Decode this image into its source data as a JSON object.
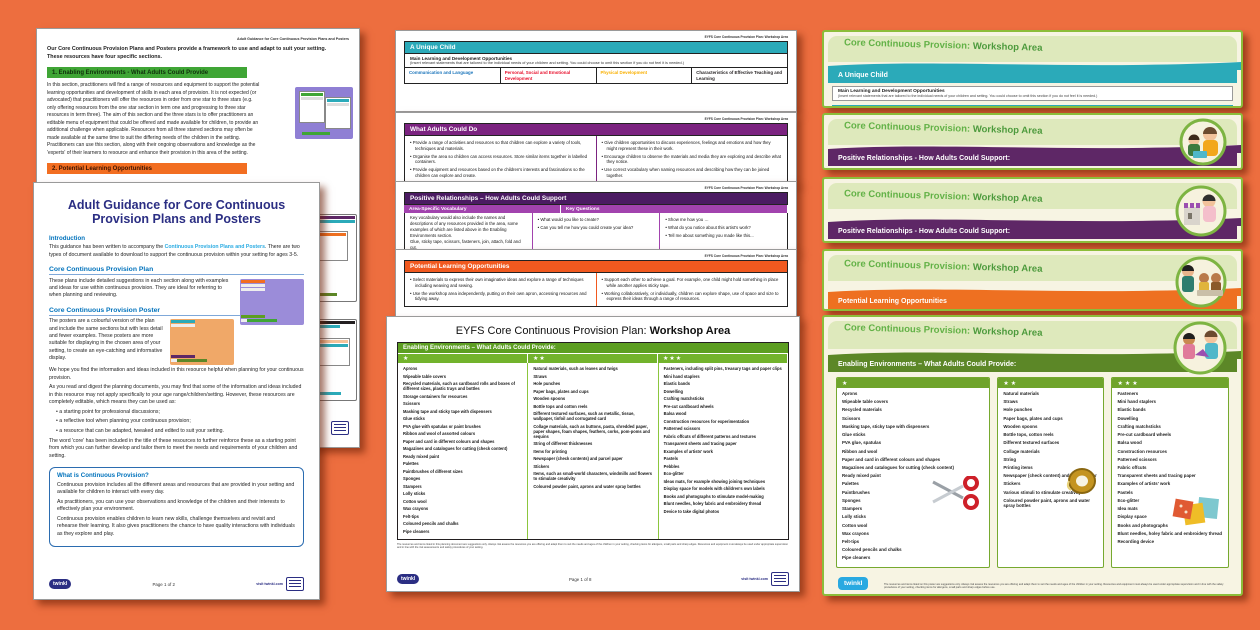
{
  "colors": {
    "bg": "#ED6E3F",
    "teal": "#2BAAB9",
    "purple_bright": "#7B2380",
    "purple_dark": "#4B1B62",
    "purple_mid": "#A243AE",
    "orange_plan": "#F1591F",
    "green_plan": "#5C9E21",
    "green_guidance": "#3FA535",
    "orange_guidance": "#F26E21",
    "poster_purple": "#5E2766",
    "poster_orange": "#EE7021",
    "poster_green": "#5C8727",
    "poster_teal": "#2BAAB9",
    "navy": "#2B2E83",
    "blue": "#0072BC",
    "link_blue": "#29ABE2",
    "twinkl_blue": "#29A9E1"
  },
  "brand": "twinkl",
  "guidance_back": {
    "header": "Adult Guidance for Core Continuous Provision Plans and Posters",
    "intro": "Our Core Continuous Provision Plans and Posters provide a framework to use and adapt to suit your setting. These resources have four specific sections.",
    "section1_title": "1. Enabling Environments - What Adults Could Provide",
    "section1_body": "In this section, practitioners will find a range of resources and equipment to support the potential learning opportunities and development of skills in each area of provision. It is not expected (or advocated) that practitioners will offer the resources in order from one star to three stars (e.g. only offering resources from the one star section in term one and progressing to three star resources in term three). The aim of this section and the three stars is to offer practitioners an editable menu of equipment that could be offered and made available for children, to provide an additional challenge when applicable. Resources from all three starred sections may often be made available at the same time to suit the differing needs of the children in the setting. Practitioners can use this section, along with their ongoing observations and knowledge as the 'experts' of their learners to resource and enhance their provision in this area of the setting.",
    "section2_title": "2. Potential Learning Opportunities"
  },
  "guidance_front": {
    "title": "Adult Guidance for Core Continuous Provision Plans and Posters",
    "intro_heading": "Introduction",
    "intro_pre": "This guidance has been written to accompany the ",
    "intro_link": "Continuous Provision Plans and Posters",
    "intro_post": ". There are two types of document available to download to support the continuous provision within your setting for ages 3-5.",
    "plan_heading": "Core Continuous Provision Plan",
    "plan_body": "These plans include detailed suggestions in each section along with examples and ideas for use within continuous provision. They are ideal for referring to when planning and reviewing.",
    "poster_heading": "Core Continuous Provision Poster",
    "poster_body": "The posters are a colourful version of the plan and include the same sections but with less detail and fewer examples. These posters are more suitable for displaying in the chosen area of your setting, to create an eye-catching and informative display.",
    "hope_para": "We hope you find the information and ideas included in this resource helpful when planning for your continuous provision.",
    "editable_para": "As you read and digest the planning documents, you may find that some of the information and ideas included in this resource may not apply specifically to your age range/children/setting. However, these resources are completely editable, which means they can be used as:",
    "bullets": [
      "a starting point for professional discussions;",
      "a reflective tool when planning your continuous provision;",
      "a resource that can be adapted, tweaked and edited to suit your setting."
    ],
    "core_para": "The word 'core' has been included in the title of these resources to further reinforce these as a starting point from which you can further develop and tailor them to meet the needs and requirements of your children and setting.",
    "box_heading": "What is Continuous Provision?",
    "box_paras": [
      "Continuous provision includes all the different areas and resources that are provided in your setting and available for children to interact with every day.",
      "As practitioners, you can use your observations and knowledge of the children and their interests to effectively plan your environment.",
      "Continuous provision enables children to learn new skills, challenge themselves and revisit and rehearse their learning. It also gives practitioners the chance to have quality interactions with individuals as they explore and play."
    ],
    "footer_page": "Page 1 of 2",
    "footer_site": "visit twinkl.com"
  },
  "strips": {
    "header": "EYFS Core Continuous Provision Plan: Workshop Area",
    "unique_child": {
      "banner": "A Unique Child",
      "sub": "Main Learning and Development Opportunities",
      "note": "(Insert relevant statements that are tailored to the individual needs of your children and setting. You could choose to omit this section if you do not feel it is needed.)",
      "columns": [
        {
          "label": "Communication and Language",
          "color": "#1B75BB"
        },
        {
          "label": "Personal, Social and Emotional Development",
          "color": "#E8112D"
        },
        {
          "label": "Physical Development",
          "color": "#F9B000"
        },
        {
          "label": "Characteristics of Effective Teaching and Learning",
          "color": "#231F20"
        }
      ]
    },
    "adults_do": {
      "banner": "What Adults Could Do",
      "left": [
        "Provide a range of activities and resources so that children can explore a variety of tools, techniques and materials.",
        "Organise the area so children can access resources. Store similar items together in labelled containers.",
        "Provide equipment and resources based on the children's interests and fascinations so the children can explore and create."
      ],
      "right": [
        "Give children opportunities to discuss experiences, feelings and emotions and how they might represent these in their work.",
        "Encourage children to observe the materials and media they are exploring and describe what they notice.",
        "Use correct vocabulary when naming resources and describing how they can be joined together."
      ]
    },
    "relationships": {
      "banner": "Positive Relationships – How Adults Could Support",
      "vocab_title": "Area-Specific Vocabulary",
      "kq_title": "Key Questions",
      "vocab": "Key vocabulary would also include the names and descriptions of any resources provided in the area, some examples of which are listed above in the Enabling Environments section.",
      "vocab2": "Glue, sticky tape, scissors, fasteners, join, attach, fold and cut.",
      "kq1": [
        "What would you like to create?",
        "Can you tell me how you could create your idea?"
      ],
      "kq2": [
        "Show me how you …",
        "What do you notice about this artist's work?",
        "Tell me about something you made like this..."
      ]
    },
    "opportunities": {
      "banner": "Potential Learning Opportunities",
      "left": [
        "Select materials to express their own imaginative ideas and explore a range of techniques including weaving and sewing.",
        "Use the workshop area independently, putting on their own apron, accessing resources and tidying away."
      ],
      "right": [
        "Support each other to achieve a goal. For example, one child might hold something in place while another applies sticky tape.",
        "Working collaboratively, or individually, children can explore shape, use of space and size to express their ideas through a range of resources."
      ]
    }
  },
  "plan": {
    "title": "EYFS Core Continuous Provision Plan: ",
    "title_bold": "Workshop Area",
    "banner": "Enabling Environments – What Adults Could Provide:",
    "stars": [
      "★",
      "★★",
      "★★★"
    ],
    "col1": [
      "Aprons",
      "Wipeable table covers",
      "Recycled materials, such as cardboard rolls and boxes of different sizes, plastic trays and bottles",
      "Storage containers for resources",
      "Scissors",
      "Masking tape and sticky tape with dispensers",
      "Glue sticks",
      "PVA glue with spatulas or paint brushes",
      "Ribbon and wool of assorted colours",
      "Paper and card in different colours and shapes",
      "Magazines and catalogues for cutting (check content)",
      "Ready mixed paint",
      "Palettes",
      "Paintbrushes of different sizes",
      "Sponges",
      "Stampers",
      "Lolly sticks",
      "Cotton wool",
      "Wax crayons",
      "Felt-tips",
      "Coloured pencils and chalks",
      "Pipe cleaners"
    ],
    "col2": [
      "Natural materials, such as leaves and twigs",
      "Straws",
      "Hole punches",
      "Paper bags, plates and cups",
      "Wooden spoons",
      "Bottle tops and cotton reels",
      "Different textured surfaces, such as metallic, tissue, wallpaper, tinfoil and corrugated card",
      "Collage materials, such as buttons, pasta, shredded paper, paper shapes, foam shapes, feathers, corks, pom-poms and sequins",
      "String of different thicknesses",
      "Items for printing",
      "Newspaper (check contents) and parcel paper",
      "Stickers",
      "Items, such as small-world characters, windmills and flowers to stimulate creativity",
      "Coloured powder paint, aprons and water spray bottles"
    ],
    "col3": [
      "Fasteners, including split pins, treasury tags and paper clips",
      "Mini hand staplers",
      "Elastic bands",
      "Dowelling",
      "Crafting matchsticks",
      "Pre-cut cardboard wheels",
      "Balsa wood",
      "Construction resources for experimentation",
      "Patterned scissors",
      "Fabric offcuts of different patterns and textures",
      "Transparent sheets and tracing paper",
      "Examples of artists' work",
      "Pastels",
      "Pebbles",
      "Eco-glitter",
      "Ideas mats, for example showing joining techniques",
      "Display space for models with children's own labels",
      "Books and photographs to stimulate model-making",
      "Blunt needles, holey fabric and embroidery thread",
      "Device to take digital photos"
    ],
    "fine_print": "The resources and items listed in this planning document are suggestions only. Always risk assess the resources you are offering and adapt them to suit the needs and ages of the children in your setting, checking items for allergens, small parts and sharp edges. Resources and equipment must always be used under appropriate supervision and in line with the risk assessments and safety procedures of your setting.",
    "footer_page": "Page 1 of 8",
    "footer_site": "visit twinkl.com"
  },
  "posters": {
    "heading": "Core Continuous Provision: ",
    "heading_bold": "Workshop Area",
    "p1": {
      "banner": "A Unique Child",
      "color": "#2BAAB9",
      "sub": "Main Learning and Development Opportunities",
      "note": "(Insert relevant statements that are tailored to the individual needs of your children and setting. You could choose to omit this section if you do not feel it is needed.)"
    },
    "p2": {
      "banner": "Positive Relationships - How Adults Could Support:",
      "color": "#5E2766"
    },
    "p3": {
      "banner": "Positive Relationships - How Adults Could Support:",
      "color": "#5E2766"
    },
    "p4": {
      "banner": "Potential Learning Opportunities",
      "color": "#EE7021"
    },
    "p5": {
      "banner": "Enabling Environments – What Adults Could Provide:",
      "color": "#5C8727",
      "stars": [
        "★",
        "★★",
        "★★★"
      ],
      "col1": [
        "Aprons",
        "Wipeable table covers",
        "Recycled materials",
        "Scissors",
        "Masking tape, sticky tape with dispensers",
        "Glue sticks",
        "PVA glue, spatulas",
        "Ribbon and wool",
        "Paper and card in different colours and shapes",
        "Magazines and catalogues for cutting (check content)",
        "Ready mixed paint",
        "Palettes",
        "Paintbrushes",
        "Sponges",
        "Stampers",
        "Lolly sticks",
        "Cotton wool",
        "Wax crayons",
        "Felt-tips",
        "Coloured pencils and chalks",
        "Pipe cleaners"
      ],
      "col2": [
        "Natural materials",
        "Straws",
        "Hole punches",
        "Paper bags, plates and cups",
        "Wooden spoons",
        "Bottle tops, cotton reels",
        "Different textured surfaces",
        "Collage materials",
        "String",
        "Printing items",
        "Newspaper (check content) and parcel paper",
        "Stickers",
        "Various stimuli to stimulate creativity",
        "Coloured powder paint, aprons and water spray bottles"
      ],
      "col3": [
        "Fasteners",
        "Mini hand staplers",
        "Elastic bands",
        "Dowelling",
        "Crafting matchsticks",
        "Pre-cut cardboard wheels",
        "Balsa wood",
        "Construction resources",
        "Patterned scissors",
        "Fabric offcuts",
        "Transparent sheets and tracing paper",
        "Examples of artists' work",
        "Pastels",
        "Eco-glitter",
        "Idea mats",
        "Display space",
        "Books and photographs",
        "Blunt needles, holey fabric and embroidery thread",
        "Recording device"
      ],
      "fine_print": "The resources and items listed on this poster are suggestions only. Always risk assess the resources you are offering and adapt them to suit the needs and ages of the children in your setting. Resources and equipment must always be used under appropriate supervision and in line with the safety procedures of your setting, checking items for allergens, small parts and sharp edges before use."
    }
  }
}
